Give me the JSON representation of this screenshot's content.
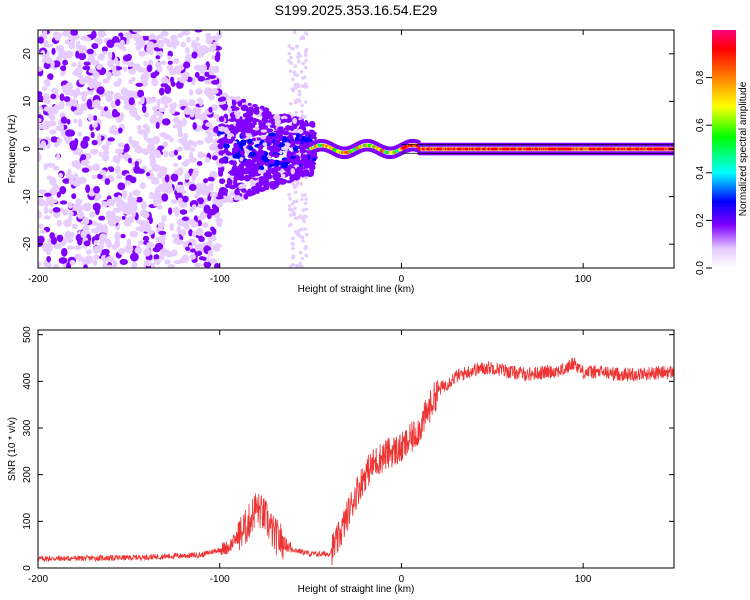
{
  "title": "S199.2025.353.16.54.E29",
  "chart_data": [
    {
      "type": "heatmap",
      "name": "spectrogram",
      "xlabel": "Height of straight line (km)",
      "ylabel": "Frequency (Hz)",
      "xlim": [
        -200,
        150
      ],
      "ylim": [
        -25,
        25
      ],
      "xticks": [
        -200,
        -100,
        0,
        100
      ],
      "xtick_labels": [
        "-200",
        "-100",
        "0",
        "100"
      ],
      "yticks": [
        -20,
        -10,
        0,
        10,
        20
      ],
      "ytick_labels": [
        "-20",
        "-10",
        "0",
        "10",
        "20"
      ],
      "description_regions": [
        {
          "x": [
            -200,
            -100
          ],
          "freq": [
            -25,
            25
          ],
          "amplitude": "low, scattered noise"
        },
        {
          "x": [
            -100,
            -50
          ],
          "freq": [
            -12,
            10
          ],
          "amplitude": "moderate, scattered"
        },
        {
          "x": [
            -50,
            150
          ],
          "freq": [
            -1,
            1
          ],
          "amplitude": "high, narrow carrier line near 0 Hz"
        }
      ],
      "carrier_line": {
        "x": [
          -50,
          150
        ],
        "freq": 0,
        "peak_amplitude": 0.95
      },
      "colorbar": {
        "label": "Normalized spectral amplitude",
        "range": [
          0,
          1
        ],
        "ticks": [
          0.0,
          0.2,
          0.4,
          0.6,
          0.8
        ],
        "tick_labels": [
          "0.0",
          "0.2",
          "0.4",
          "0.6",
          "0.8"
        ],
        "colors": [
          "#ffffff",
          "#e6ccff",
          "#8000ff",
          "#0000ff",
          "#00ffff",
          "#00ff00",
          "#ffff00",
          "#ff8000",
          "#ff0000",
          "#ff0080"
        ]
      }
    },
    {
      "type": "line",
      "name": "snr",
      "xlabel": "Height of straight line (km)",
      "ylabel": "SNR (10 * v/v)",
      "xlim": [
        -200,
        150
      ],
      "ylim": [
        0,
        510
      ],
      "xticks": [
        -200,
        -100,
        0,
        100
      ],
      "xtick_labels": [
        "-200",
        "-100",
        "0",
        "100"
      ],
      "yticks": [
        0,
        100,
        200,
        300,
        400,
        500
      ],
      "ytick_labels": [
        "0",
        "100",
        "200",
        "300",
        "400",
        "500"
      ],
      "color": "#ee3333",
      "x": [
        -200,
        -150,
        -110,
        -95,
        -85,
        -80,
        -75,
        -70,
        -60,
        -50,
        -40,
        -35,
        -30,
        -25,
        -20,
        -15,
        -10,
        -5,
        0,
        5,
        10,
        15,
        20,
        30,
        40,
        50,
        60,
        70,
        80,
        90,
        95,
        100,
        110,
        120,
        130,
        140,
        150
      ],
      "y": [
        20,
        22,
        28,
        45,
        90,
        130,
        110,
        70,
        40,
        30,
        30,
        60,
        110,
        160,
        200,
        225,
        240,
        250,
        255,
        275,
        300,
        340,
        380,
        410,
        425,
        430,
        420,
        415,
        420,
        425,
        440,
        420,
        420,
        415,
        415,
        418,
        420
      ]
    }
  ]
}
